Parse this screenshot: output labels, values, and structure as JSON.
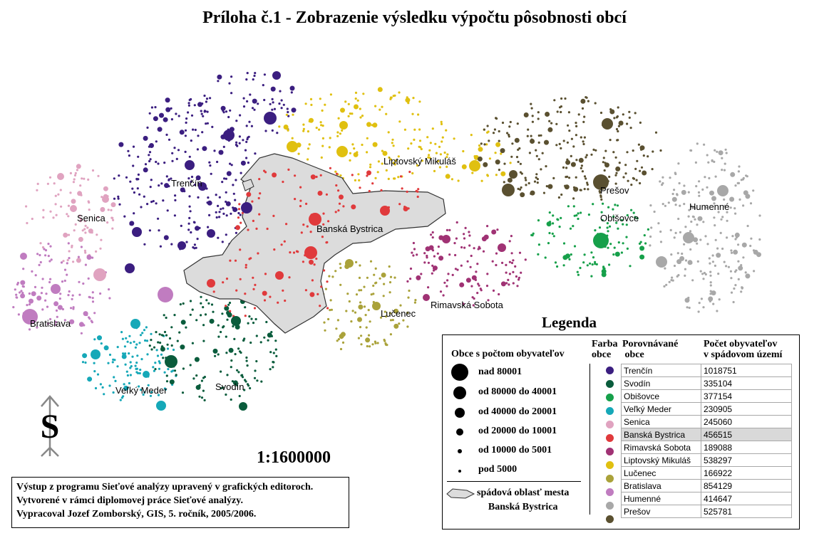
{
  "title": "Príloha č.1 - Zobrazenie  výsledku výpočtu pôsobnosti obcí",
  "map_labels": [
    {
      "text": "Trenčín"
    },
    {
      "text": "Senica"
    },
    {
      "text": "Bratislava"
    },
    {
      "text": "Veľký Meder"
    },
    {
      "text": "Svodín"
    },
    {
      "text": "Banská Bystrica"
    },
    {
      "text": "Liptovský Mikuláš"
    },
    {
      "text": "Lučenec"
    },
    {
      "text": "Rimavská Sobota"
    },
    {
      "text": "Prešov"
    },
    {
      "text": "Obišovce"
    },
    {
      "text": "Humenné"
    }
  ],
  "legend": {
    "title": "Legenda",
    "size_section_title": "Obce s počtom obyvateľov",
    "size_classes": [
      "nad 80001",
      "od 80000 do 40001",
      "od 40000 do 20001",
      "od 20000 do 10001",
      "od 10000 do 5001",
      "pod 5000"
    ],
    "area_label_line1": "spádová oblasť mesta",
    "area_label_line2": "Banská Bystrica",
    "header_color_line1": "Farba",
    "header_color_line2": "obce",
    "header_compared_line1": "Porovnávané",
    "header_compared_line2": " obce",
    "header_pop_line1": "Počet obyvateľov",
    "header_pop_line2": "v spádovom území",
    "cities": [
      {
        "name": "Trenčín",
        "population": "1018751",
        "color": "#3b1e80"
      },
      {
        "name": "Svodín",
        "population": "335104",
        "color": "#0a5c3c"
      },
      {
        "name": "Obišovce",
        "population": "377154",
        "color": "#16a04a"
      },
      {
        "name": "Veľký Meder",
        "population": "230905",
        "color": "#16a8b8"
      },
      {
        "name": "Senica",
        "population": "245060",
        "color": "#e0a3c0"
      },
      {
        "name": "Banská Bystrica",
        "population": "456515",
        "color": "#e03a3c"
      },
      {
        "name": "Rimavská Sobota",
        "population": "189088",
        "color": "#a03274"
      },
      {
        "name": "Liptovský Mikuláš",
        "population": "538297",
        "color": "#e0c010"
      },
      {
        "name": "Lučenec",
        "population": "166922",
        "color": "#aaa23a"
      },
      {
        "name": "Bratislava",
        "population": "854129",
        "color": "#c07cc0"
      },
      {
        "name": "Humenné",
        "population": "414647",
        "color": "#a8a8a8"
      },
      {
        "name": "Prešov",
        "population": "525781",
        "color": "#5a5030"
      }
    ],
    "highlighted": "Banská Bystrica"
  },
  "scale": "1:1600000",
  "north_symbol": "S",
  "notes": [
    "Výstup z programu Sieťové analýzy upravený v grafických editoroch.",
    "Vytvorené v rámci diplomovej práce Sieťové analýzy.",
    "Vypracoval Jozef Zomborský, GIS, 5. ročník,  2005/2006."
  ]
}
